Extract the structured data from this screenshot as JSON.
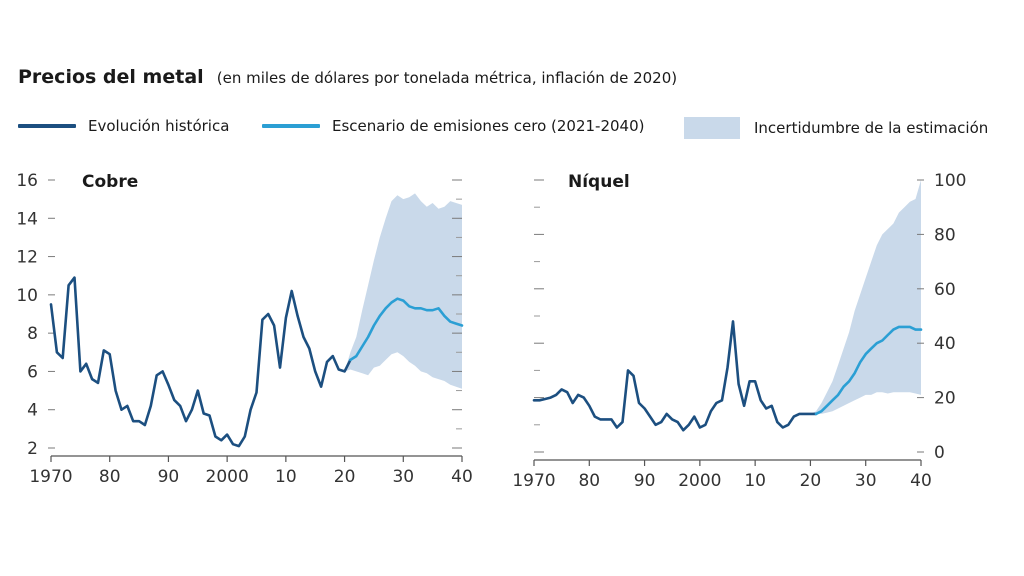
{
  "header": {
    "title": "Precios del metal",
    "subtitle": "(en miles de dólares por tonelada métrica, inflación de 2020)"
  },
  "legend": {
    "items": [
      {
        "label": "Evolución histórica",
        "color": "#1c4f80",
        "type": "line"
      },
      {
        "label": "Escenario de emisiones cero (2021-2040)",
        "color": "#2b9fd4",
        "type": "line"
      },
      {
        "label": "Incertidumbre de la estimación",
        "color": "#c9d9ea",
        "type": "area"
      }
    ]
  },
  "colors": {
    "historical": "#1c4f80",
    "scenario": "#2b9fd4",
    "uncertainty": "#c9d9ea",
    "axis": "#555555",
    "tick_text": "#333333"
  },
  "chart_data": [
    {
      "type": "line",
      "title": "Cobre",
      "xlim": [
        1970,
        2040
      ],
      "ylim": [
        2,
        16
      ],
      "y_axis_side": "left",
      "xticks": [
        1970,
        1980,
        1990,
        2000,
        2010,
        2020,
        2030,
        2040
      ],
      "xtick_labels": [
        "1970",
        "80",
        "90",
        "2000",
        "10",
        "20",
        "30",
        "40"
      ],
      "yticks": [
        2,
        4,
        6,
        8,
        10,
        12,
        14,
        16
      ],
      "ytick_labels": [
        "2",
        "4",
        "6",
        "8",
        "10",
        "12",
        "14",
        "16"
      ],
      "series": [
        {
          "name": "Evolución histórica",
          "x": [
            1970,
            1971,
            1972,
            1973,
            1974,
            1975,
            1976,
            1977,
            1978,
            1979,
            1980,
            1981,
            1982,
            1983,
            1984,
            1985,
            1986,
            1987,
            1988,
            1989,
            1990,
            1991,
            1992,
            1993,
            1994,
            1995,
            1996,
            1997,
            1998,
            1999,
            2000,
            2001,
            2002,
            2003,
            2004,
            2005,
            2006,
            2007,
            2008,
            2009,
            2010,
            2011,
            2012,
            2013,
            2014,
            2015,
            2016,
            2017,
            2018,
            2019,
            2020,
            2021
          ],
          "y": [
            9.5,
            7.0,
            6.7,
            10.5,
            10.9,
            6.0,
            6.4,
            5.6,
            5.4,
            7.1,
            6.9,
            5.0,
            4.0,
            4.2,
            3.4,
            3.4,
            3.2,
            4.2,
            5.8,
            6.0,
            5.3,
            4.5,
            4.2,
            3.4,
            4.0,
            5.0,
            3.8,
            3.7,
            2.6,
            2.4,
            2.7,
            2.2,
            2.1,
            2.6,
            4.0,
            4.9,
            8.7,
            9.0,
            8.4,
            6.2,
            8.8,
            10.2,
            8.9,
            7.8,
            7.2,
            6.0,
            5.2,
            6.5,
            6.8,
            6.1,
            6.0,
            6.6
          ]
        },
        {
          "name": "Escenario de emisiones cero (2021-2040)",
          "x": [
            2021,
            2022,
            2023,
            2024,
            2025,
            2026,
            2027,
            2028,
            2029,
            2030,
            2031,
            2032,
            2033,
            2034,
            2035,
            2036,
            2037,
            2038,
            2039,
            2040
          ],
          "y": [
            6.6,
            6.8,
            7.3,
            7.8,
            8.4,
            8.9,
            9.3,
            9.6,
            9.8,
            9.7,
            9.4,
            9.3,
            9.3,
            9.2,
            9.2,
            9.3,
            8.9,
            8.6,
            8.5,
            8.4
          ]
        }
      ],
      "uncertainty": {
        "x": [
          2020,
          2021,
          2022,
          2023,
          2024,
          2025,
          2026,
          2027,
          2028,
          2029,
          2030,
          2031,
          2032,
          2033,
          2034,
          2035,
          2036,
          2037,
          2038,
          2039,
          2040
        ],
        "upper": [
          6.0,
          7.0,
          7.8,
          9.2,
          10.5,
          11.8,
          13.0,
          14.0,
          14.9,
          15.2,
          15.0,
          15.1,
          15.3,
          14.9,
          14.6,
          14.8,
          14.5,
          14.6,
          14.9,
          14.8,
          14.7
        ],
        "lower": [
          6.0,
          6.1,
          6.0,
          5.9,
          5.8,
          6.2,
          6.3,
          6.6,
          6.9,
          7.0,
          6.8,
          6.5,
          6.3,
          6.0,
          5.9,
          5.7,
          5.6,
          5.5,
          5.3,
          5.2,
          5.1
        ]
      }
    },
    {
      "type": "line",
      "title": "Níquel",
      "xlim": [
        1970,
        2040
      ],
      "ylim": [
        0,
        100
      ],
      "y_axis_side": "right",
      "xticks": [
        1970,
        1980,
        1990,
        2000,
        2010,
        2020,
        2030,
        2040
      ],
      "xtick_labels": [
        "1970",
        "80",
        "90",
        "2000",
        "10",
        "20",
        "30",
        "40"
      ],
      "yticks": [
        0,
        20,
        40,
        60,
        80,
        100
      ],
      "ytick_labels": [
        "0",
        "20",
        "40",
        "60",
        "80",
        "100"
      ],
      "series": [
        {
          "name": "Evolución histórica",
          "x": [
            1970,
            1971,
            1972,
            1973,
            1974,
            1975,
            1976,
            1977,
            1978,
            1979,
            1980,
            1981,
            1982,
            1983,
            1984,
            1985,
            1986,
            1987,
            1988,
            1989,
            1990,
            1991,
            1992,
            1993,
            1994,
            1995,
            1996,
            1997,
            1998,
            1999,
            2000,
            2001,
            2002,
            2003,
            2004,
            2005,
            2006,
            2007,
            2008,
            2009,
            2010,
            2011,
            2012,
            2013,
            2014,
            2015,
            2016,
            2017,
            2018,
            2019,
            2020,
            2021
          ],
          "y": [
            19,
            19,
            19.5,
            20,
            21,
            23,
            22,
            18,
            21,
            20,
            17,
            13,
            12,
            12,
            12,
            9,
            11,
            30,
            28,
            18,
            16,
            13,
            10,
            11,
            14,
            12,
            11,
            8,
            10,
            13,
            9,
            10,
            15,
            18,
            19,
            31,
            48,
            25,
            17,
            26,
            26,
            19,
            16,
            17,
            11,
            9,
            10,
            13,
            14,
            14,
            14,
            14
          ]
        },
        {
          "name": "Escenario de emisiones cero (2021-2040)",
          "x": [
            2021,
            2022,
            2023,
            2024,
            2025,
            2026,
            2027,
            2028,
            2029,
            2030,
            2031,
            2032,
            2033,
            2034,
            2035,
            2036,
            2037,
            2038,
            2039,
            2040
          ],
          "y": [
            14,
            15,
            17,
            19,
            21,
            24,
            26,
            29,
            33,
            36,
            38,
            40,
            41,
            43,
            45,
            46,
            46,
            46,
            45,
            45
          ]
        }
      ],
      "uncertainty": {
        "x": [
          2020,
          2021,
          2022,
          2023,
          2024,
          2025,
          2026,
          2027,
          2028,
          2029,
          2030,
          2031,
          2032,
          2033,
          2034,
          2035,
          2036,
          2037,
          2038,
          2039,
          2040
        ],
        "upper": [
          14,
          15,
          18,
          22,
          26,
          32,
          38,
          44,
          52,
          58,
          64,
          70,
          76,
          80,
          82,
          84,
          88,
          90,
          92,
          93,
          100
        ],
        "lower": [
          14,
          14,
          14,
          14.5,
          15,
          16,
          17,
          18,
          19,
          20,
          21,
          21,
          22,
          22,
          21.5,
          22,
          22,
          22,
          22,
          21.5,
          21
        ]
      }
    }
  ]
}
